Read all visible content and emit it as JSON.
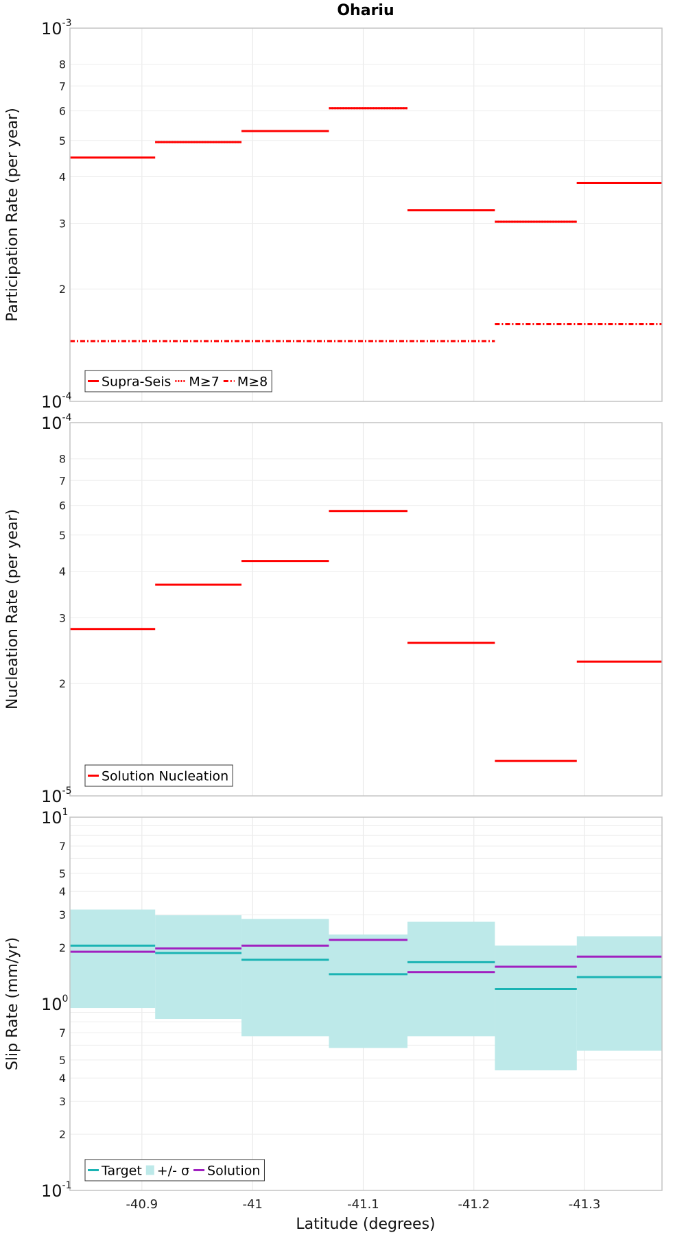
{
  "chart_data": {
    "title": "Ohariu",
    "xlabel": "Latitude (degrees)",
    "xlim": [
      -40.835,
      -41.37
    ],
    "xticks": [
      {
        "value": -40.9,
        "label": "-40.9"
      },
      {
        "value": -41.0,
        "label": "-41"
      },
      {
        "value": -41.1,
        "label": "-41.1"
      },
      {
        "value": -41.2,
        "label": "-41.2"
      },
      {
        "value": -41.3,
        "label": "-41.3"
      }
    ],
    "panels": [
      {
        "type": "line",
        "ylabel": "Participation Rate (per year)",
        "yscale": "log",
        "ylim": [
          0.0001,
          0.001
        ],
        "major_ticks": [
          {
            "value": 0.0001,
            "base": "10",
            "exp": "-4"
          },
          {
            "value": 0.001,
            "base": "10",
            "exp": "-3"
          }
        ],
        "minor_ticks": [
          {
            "value": 0.0002,
            "label": "2"
          },
          {
            "value": 0.0003,
            "label": "3"
          },
          {
            "value": 0.0004,
            "label": "4"
          },
          {
            "value": 0.0005,
            "label": "5"
          },
          {
            "value": 0.0006,
            "label": "6"
          },
          {
            "value": 0.0007,
            "label": "7"
          },
          {
            "value": 0.0008,
            "label": "8"
          }
        ],
        "legend": {
          "position": "bottom-left",
          "entries": [
            {
              "label": "Supra-Seis",
              "color": "#ff0000",
              "style": "solid"
            },
            {
              "label": "M≥7",
              "color": "#ff0000",
              "style": "dotted"
            },
            {
              "label": "M≥8",
              "color": "#ff0000",
              "style": "dashdot"
            }
          ]
        },
        "series": [
          {
            "name": "Supra-Seis",
            "color": "#ff0000",
            "style": "solid",
            "segments": [
              {
                "x0": -40.835,
                "x1": -40.912,
                "y": 0.00045
              },
              {
                "x0": -40.912,
                "x1": -40.99,
                "y": 0.000495
              },
              {
                "x0": -40.99,
                "x1": -41.069,
                "y": 0.00053
              },
              {
                "x0": -41.069,
                "x1": -41.14,
                "y": 0.00061
              },
              {
                "x0": -41.14,
                "x1": -41.219,
                "y": 0.000325
              },
              {
                "x0": -41.219,
                "x1": -41.293,
                "y": 0.000303
              },
              {
                "x0": -41.293,
                "x1": -41.37,
                "y": 0.000385
              }
            ]
          },
          {
            "name": "M≥7",
            "color": "#ff0000",
            "style": "dotted",
            "segments": [
              {
                "x0": -40.912,
                "x1": -40.99,
                "y": 0.000495
              },
              {
                "x0": -40.99,
                "x1": -41.069,
                "y": 0.00053
              },
              {
                "x0": -41.069,
                "x1": -41.14,
                "y": 0.00061
              },
              {
                "x0": -41.219,
                "x1": -41.293,
                "y": 0.000303
              },
              {
                "x0": -41.293,
                "x1": -41.37,
                "y": 0.000385
              }
            ]
          },
          {
            "name": "M≥8",
            "color": "#ff0000",
            "style": "dashdot",
            "segments": [
              {
                "x0": -40.835,
                "x1": -41.219,
                "y": 0.000145
              },
              {
                "x0": -41.219,
                "x1": -41.37,
                "y": 0.000161
              }
            ]
          }
        ]
      },
      {
        "type": "line",
        "ylabel": "Nucleation Rate (per year)",
        "yscale": "log",
        "ylim": [
          1e-05,
          0.0001
        ],
        "major_ticks": [
          {
            "value": 1e-05,
            "base": "10",
            "exp": "-5"
          },
          {
            "value": 0.0001,
            "base": "10",
            "exp": "-4"
          }
        ],
        "minor_ticks": [
          {
            "value": 2e-05,
            "label": "2"
          },
          {
            "value": 3e-05,
            "label": "3"
          },
          {
            "value": 4e-05,
            "label": "4"
          },
          {
            "value": 5e-05,
            "label": "5"
          },
          {
            "value": 6e-05,
            "label": "6"
          },
          {
            "value": 7e-05,
            "label": "7"
          },
          {
            "value": 8e-05,
            "label": "8"
          }
        ],
        "legend": {
          "position": "bottom-left",
          "entries": [
            {
              "label": "Solution Nucleation",
              "color": "#ff0000",
              "style": "solid"
            }
          ]
        },
        "series": [
          {
            "name": "Solution Nucleation",
            "color": "#ff0000",
            "style": "solid",
            "segments": [
              {
                "x0": -40.835,
                "x1": -40.912,
                "y": 2.8e-05
              },
              {
                "x0": -40.912,
                "x1": -40.99,
                "y": 3.68e-05
              },
              {
                "x0": -40.99,
                "x1": -41.069,
                "y": 4.26e-05
              },
              {
                "x0": -41.069,
                "x1": -41.14,
                "y": 5.8e-05
              },
              {
                "x0": -41.14,
                "x1": -41.219,
                "y": 2.57e-05
              },
              {
                "x0": -41.219,
                "x1": -41.293,
                "y": 1.24e-05
              },
              {
                "x0": -41.293,
                "x1": -41.37,
                "y": 2.29e-05
              }
            ]
          }
        ]
      },
      {
        "type": "line",
        "ylabel": "Slip Rate (mm/yr)",
        "yscale": "log",
        "ylim": [
          0.1,
          10
        ],
        "major_ticks": [
          {
            "value": 0.1,
            "base": "10",
            "exp": "-1"
          },
          {
            "value": 1,
            "base": "10",
            "exp": "0"
          },
          {
            "value": 10,
            "base": "10",
            "exp": "1"
          }
        ],
        "minor_ticks": [
          {
            "value": 0.2,
            "label": "2"
          },
          {
            "value": 0.3,
            "label": "3"
          },
          {
            "value": 0.4,
            "label": "4"
          },
          {
            "value": 0.5,
            "label": "5"
          },
          {
            "value": 0.7,
            "label": "7"
          },
          {
            "value": 2,
            "label": "2"
          },
          {
            "value": 3,
            "label": "3"
          },
          {
            "value": 4,
            "label": "4"
          },
          {
            "value": 5,
            "label": "5"
          },
          {
            "value": 7,
            "label": "7"
          }
        ],
        "minor_grid": [
          0.2,
          0.3,
          0.4,
          0.5,
          0.6,
          0.7,
          0.8,
          0.9,
          2,
          3,
          4,
          5,
          6,
          7,
          8,
          9
        ],
        "legend": {
          "position": "bottom-left",
          "entries": [
            {
              "label": "Target",
              "color": "#1ab3b3",
              "style": "solid"
            },
            {
              "label": "+/- σ",
              "color": "#bde9e9",
              "style": "fill"
            },
            {
              "label": "Solution",
              "color": "#a020c0",
              "style": "solid"
            }
          ]
        },
        "bands": [
          {
            "name": "+/- σ",
            "color": "#bde9e9",
            "segments": [
              {
                "x0": -40.835,
                "x1": -40.912,
                "lo": 0.95,
                "hi": 3.2
              },
              {
                "x0": -40.912,
                "x1": -40.99,
                "lo": 0.83,
                "hi": 2.98
              },
              {
                "x0": -40.99,
                "x1": -41.069,
                "lo": 0.67,
                "hi": 2.85
              },
              {
                "x0": -41.069,
                "x1": -41.14,
                "lo": 0.58,
                "hi": 2.35
              },
              {
                "x0": -41.14,
                "x1": -41.219,
                "lo": 0.67,
                "hi": 2.75
              },
              {
                "x0": -41.219,
                "x1": -41.293,
                "lo": 0.44,
                "hi": 2.05
              },
              {
                "x0": -41.293,
                "x1": -41.37,
                "lo": 0.56,
                "hi": 2.3
              }
            ]
          }
        ],
        "series": [
          {
            "name": "Target",
            "color": "#1ab3b3",
            "style": "solid",
            "segments": [
              {
                "x0": -40.835,
                "x1": -40.912,
                "y": 2.05
              },
              {
                "x0": -40.912,
                "x1": -40.99,
                "y": 1.87
              },
              {
                "x0": -40.99,
                "x1": -41.069,
                "y": 1.72
              },
              {
                "x0": -41.069,
                "x1": -41.14,
                "y": 1.44
              },
              {
                "x0": -41.14,
                "x1": -41.219,
                "y": 1.67
              },
              {
                "x0": -41.219,
                "x1": -41.293,
                "y": 1.2
              },
              {
                "x0": -41.293,
                "x1": -41.37,
                "y": 1.39
              }
            ]
          },
          {
            "name": "Solution",
            "color": "#a020c0",
            "style": "solid",
            "segments": [
              {
                "x0": -40.835,
                "x1": -40.912,
                "y": 1.9
              },
              {
                "x0": -40.912,
                "x1": -40.99,
                "y": 1.98
              },
              {
                "x0": -40.99,
                "x1": -41.069,
                "y": 2.05
              },
              {
                "x0": -41.069,
                "x1": -41.14,
                "y": 2.2
              },
              {
                "x0": -41.14,
                "x1": -41.219,
                "y": 1.48
              },
              {
                "x0": -41.219,
                "x1": -41.293,
                "y": 1.58
              },
              {
                "x0": -41.293,
                "x1": -41.37,
                "y": 1.79
              }
            ]
          }
        ]
      }
    ]
  }
}
